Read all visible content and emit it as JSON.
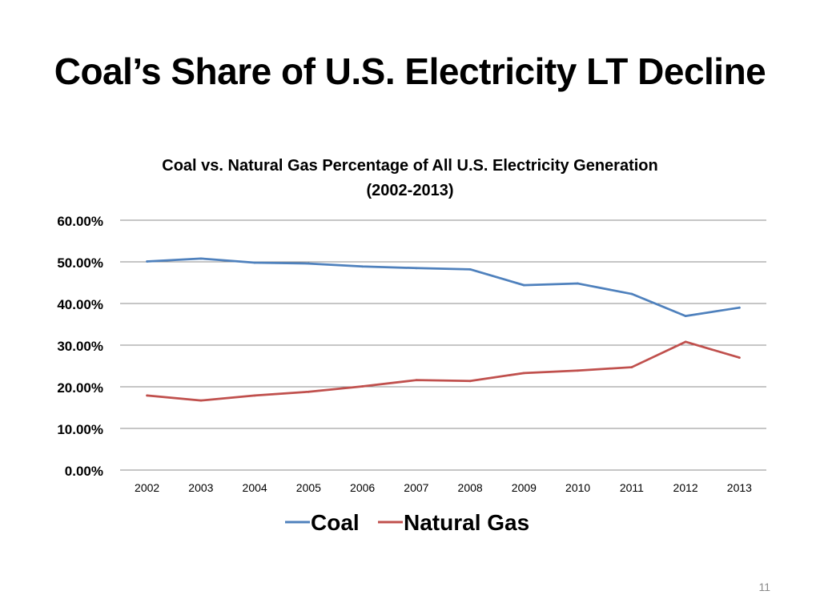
{
  "slide": {
    "title": "Coal’s Share of U.S. Electricity LT Decline",
    "page_number": "11"
  },
  "chart_data": {
    "type": "line",
    "title": "Coal vs. Natural Gas Percentage of All U.S. Electricity Generation",
    "subtitle": "(2002-2013)",
    "xlabel": "",
    "ylabel": "",
    "categories": [
      "2002",
      "2003",
      "2004",
      "2005",
      "2006",
      "2007",
      "2008",
      "2009",
      "2010",
      "2011",
      "2012",
      "2013"
    ],
    "ylim": [
      0,
      60
    ],
    "yticks": [
      0,
      10,
      20,
      30,
      40,
      50,
      60
    ],
    "ytick_labels": [
      "0.00%",
      "10.00%",
      "20.00%",
      "30.00%",
      "40.00%",
      "50.00%",
      "60.00%"
    ],
    "grid": true,
    "legend_position": "bottom",
    "series": [
      {
        "name": "Coal",
        "color": "#4F81BD",
        "values": [
          50.1,
          50.8,
          49.8,
          49.6,
          48.9,
          48.5,
          48.2,
          44.4,
          44.8,
          42.3,
          37.0,
          39.0
        ]
      },
      {
        "name": "Natural Gas",
        "color": "#C0504D",
        "values": [
          17.9,
          16.7,
          17.9,
          18.8,
          20.1,
          21.6,
          21.4,
          23.3,
          23.9,
          24.7,
          30.8,
          27.0
        ]
      }
    ]
  }
}
